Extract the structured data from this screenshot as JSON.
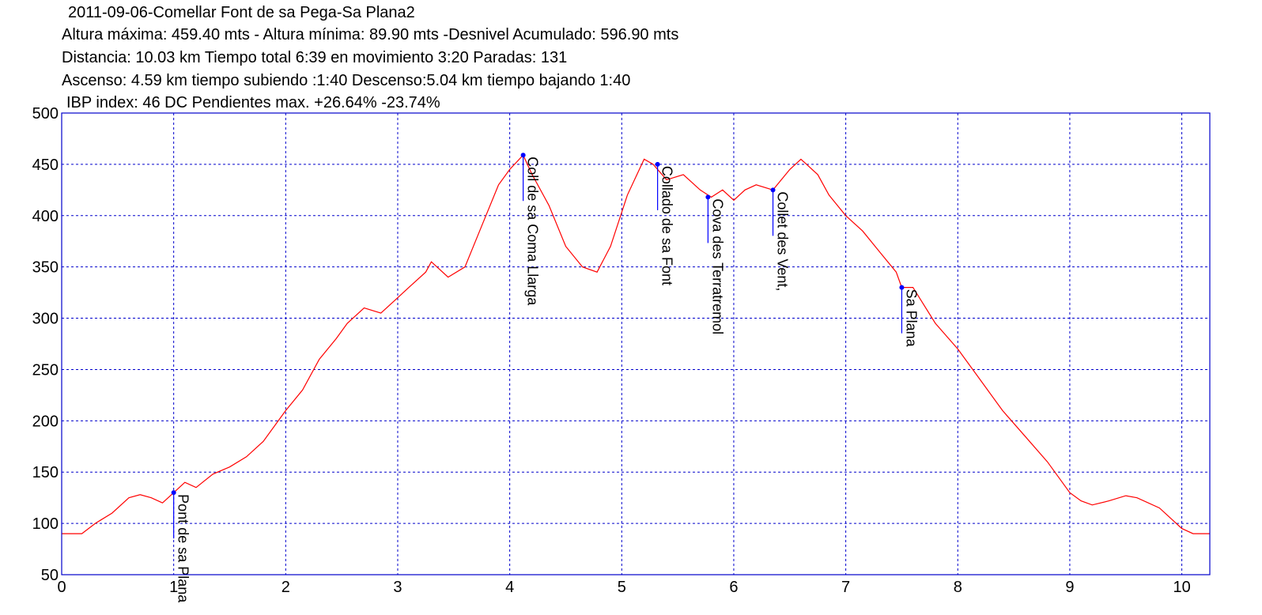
{
  "header": {
    "line1": "2011-09-06-Comellar Font de sa Pega-Sa Plana2",
    "line2": "Altura máxima: 459.40 mts - Altura mínima: 89.90 mts -Desnivel Acumulado: 596.90 mts",
    "line3": "Distancia: 10.03 km  Tiempo total 6:39  en movimiento 3:20 Paradas: 131",
    "line4": "Ascenso: 4.59 km  tiempo subiendo :1:40  Descenso:5.04 km tiempo bajando 1:40",
    "line5": "IBP index: 46 DC  Pendientes max. +26.64%  -23.74%"
  },
  "colors": {
    "profile": "#ff0000",
    "grid": "#0000cc",
    "frame": "#0000cc",
    "waypoint": "#0000ff"
  },
  "chart_data": {
    "type": "line",
    "xlim": [
      0,
      10.25
    ],
    "ylim": [
      50,
      500
    ],
    "x_ticks": [
      0,
      1,
      2,
      3,
      4,
      5,
      6,
      7,
      8,
      9,
      10
    ],
    "y_ticks": [
      50,
      100,
      150,
      200,
      250,
      300,
      350,
      400,
      450,
      500
    ],
    "grid": true,
    "series": [
      {
        "x": [
          0,
          0.18,
          0.3,
          0.45,
          0.6,
          0.7,
          0.8,
          0.9,
          1.0,
          1.1,
          1.2,
          1.35,
          1.5,
          1.65,
          1.8,
          2.0,
          2.15,
          2.3,
          2.45,
          2.55,
          2.7,
          2.85,
          3.0,
          3.1,
          3.25,
          3.3,
          3.45,
          3.6,
          3.75,
          3.9,
          4.0,
          4.12,
          4.2,
          4.35,
          4.5,
          4.65,
          4.78,
          4.9,
          5.05,
          5.2,
          5.28,
          5.4,
          5.55,
          5.7,
          5.8,
          5.9,
          6.0,
          6.1,
          6.2,
          6.35,
          6.5,
          6.6,
          6.75,
          6.85,
          7.0,
          7.15,
          7.3,
          7.45,
          7.5,
          7.6,
          7.8,
          8.0,
          8.2,
          8.4,
          8.6,
          8.8,
          9.0,
          9.1,
          9.2,
          9.35,
          9.5,
          9.6,
          9.8,
          10.0,
          10.1,
          10.25
        ],
        "y": [
          90,
          90,
          100,
          110,
          125,
          128,
          125,
          120,
          130,
          140,
          135,
          148,
          155,
          165,
          180,
          210,
          230,
          260,
          280,
          295,
          310,
          305,
          320,
          330,
          345,
          355,
          340,
          350,
          390,
          430,
          445,
          459,
          440,
          410,
          370,
          350,
          345,
          370,
          420,
          455,
          450,
          435,
          440,
          425,
          418,
          425,
          415,
          425,
          430,
          425,
          445,
          455,
          440,
          420,
          400,
          385,
          365,
          345,
          330,
          330,
          295,
          270,
          240,
          210,
          185,
          160,
          130,
          122,
          118,
          122,
          127,
          125,
          115,
          95,
          90,
          90
        ]
      }
    ],
    "waypoints": [
      {
        "name": "Pont de sa Plana",
        "x": 1.0,
        "y": 130
      },
      {
        "name": "Coll de sa Coma Llarga",
        "x": 4.12,
        "y": 459
      },
      {
        "name": "Collado de sa Font",
        "x": 5.32,
        "y": 450
      },
      {
        "name": "Cova des Terratremol",
        "x": 5.77,
        "y": 418
      },
      {
        "name": "Collet des Vent,",
        "x": 6.35,
        "y": 425
      },
      {
        "name": "Sa Plana",
        "x": 7.5,
        "y": 330
      }
    ]
  }
}
